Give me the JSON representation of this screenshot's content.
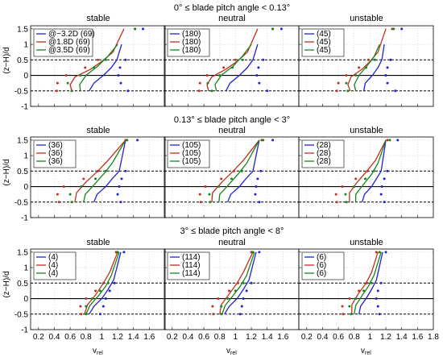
{
  "layout_cols": [
    "stable",
    "neutral",
    "unstable"
  ],
  "colors": {
    "blue": "#1f22d0",
    "red": "#c0301c",
    "green": "#16861e",
    "grid": "#c8c8c8",
    "dash": "#000000"
  },
  "chart_data": {
    "type": "line",
    "title": "",
    "xlabel": "v_rel",
    "ylabel": "(z−H)/d",
    "xlim": [
      0.1,
      1.8
    ],
    "ylim": [
      -1,
      1.6
    ],
    "xticks": [
      "0.2",
      "0.4",
      "0.6",
      "0.8",
      "1",
      "1.2",
      "1.4",
      "1.6",
      "1.8"
    ],
    "yticks": [
      "-1",
      "-0.5",
      "0",
      "0.5",
      "1",
      "1.5"
    ],
    "grid": true,
    "reference_lines": {
      "dashed_y": [
        -0.5,
        0.5
      ],
      "solid_y": [
        0
      ]
    },
    "series_meaning": [
      "@−3.2D",
      "@1.8D",
      "@3.5D"
    ],
    "marker_z": [
      -0.5,
      -0.25,
      0,
      0.25,
      0.5,
      1.5
    ],
    "legend_labels": [
      [
        [
          "@−3.2D (69)",
          "@1.8D (69)",
          "@3.5D (69)"
        ],
        [
          "(180)",
          "(180)",
          "(180)"
        ],
        [
          "(45)",
          "(45)",
          "(45)"
        ]
      ],
      [
        [
          "(36)",
          "(36)",
          "(36)"
        ],
        [
          "(105)",
          "(105)",
          "(105)"
        ],
        [
          "(28)",
          "(28)",
          "(28)"
        ]
      ],
      [
        [
          "(4)",
          "(4)",
          "(4)"
        ],
        [
          "(114)",
          "(114)",
          "(114)"
        ],
        [
          "(6)",
          "(6)",
          "(6)"
        ]
      ]
    ],
    "rows": [
      {
        "title": "0° ≤ blade pitch angle < 0.13°",
        "panels": [
          {
            "column": "stable",
            "lines": {
              "blue": {
                "x": [
                  0.84,
                  0.9,
                  1.02,
                  1.12,
                  1.19,
                  1.25
                ],
                "y": [
                  -0.5,
                  -0.25,
                  0,
                  0.25,
                  0.5,
                  1
                ]
              },
              "red": {
                "x": [
                  0.62,
                  0.6,
                  0.66,
                  0.86,
                  1.0,
                  1.14,
                  1.28
                ],
                "y": [
                  -0.5,
                  -0.3,
                  -0.05,
                  0.2,
                  0.45,
                  0.75,
                  1.5
                ]
              },
              "green": {
                "x": [
                  0.73,
                  0.72,
                  0.8,
                  0.95,
                  1.07,
                  1.2
                ],
                "y": [
                  -0.5,
                  -0.3,
                  0,
                  0.3,
                  0.6,
                  1
                ]
              }
            },
            "markers": {
              "blue": [
                1.33,
                1.24,
                1.21,
                1.23,
                1.3,
                1.52
              ],
              "red": [
                0.43,
                0.44,
                0.55,
                0.79,
                0.95,
                1.42
              ],
              "green": [
                0.62,
                0.57,
                0.73,
                0.9,
                1.05,
                1.42
              ]
            }
          },
          {
            "column": "neutral",
            "lines": {
              "blue": {
                "x": [
                  0.88,
                  0.93,
                  1.05,
                  1.15,
                  1.22,
                  1.28
                ],
                "y": [
                  -0.5,
                  -0.25,
                  0,
                  0.25,
                  0.5,
                  1
                ]
              },
              "red": {
                "x": [
                  0.66,
                  0.64,
                  0.7,
                  0.88,
                  1.02,
                  1.15,
                  1.28
                ],
                "y": [
                  -0.5,
                  -0.3,
                  -0.05,
                  0.2,
                  0.45,
                  0.75,
                  1.5
                ]
              },
              "green": {
                "x": [
                  0.76,
                  0.74,
                  0.82,
                  0.97,
                  1.08,
                  1.2
                ],
                "y": [
                  -0.5,
                  -0.3,
                  0,
                  0.3,
                  0.6,
                  1
                ]
              }
            },
            "markers": {
              "blue": [
                1.4,
                1.3,
                1.27,
                1.29,
                1.35,
                1.58
              ],
              "red": [
                0.54,
                0.55,
                0.64,
                0.85,
                1.0,
                1.47
              ],
              "green": [
                0.7,
                0.65,
                0.8,
                0.96,
                1.09,
                1.47
              ]
            }
          },
          {
            "column": "unstable",
            "lines": {
              "blue": {
                "x": [
                  0.92,
                  0.94,
                  1.03,
                  1.1,
                  1.15,
                  1.18
                ],
                "y": [
                  -0.5,
                  -0.25,
                  0,
                  0.25,
                  0.5,
                  1
                ]
              },
              "red": {
                "x": [
                  0.75,
                  0.72,
                  0.76,
                  0.9,
                  1.0,
                  1.1,
                  1.2
                ],
                "y": [
                  -0.5,
                  -0.3,
                  -0.05,
                  0.2,
                  0.45,
                  0.75,
                  1.5
                ]
              },
              "green": {
                "x": [
                  0.82,
                  0.8,
                  0.86,
                  0.96,
                  1.05,
                  1.12
                ],
                "y": [
                  -0.5,
                  -0.3,
                  0,
                  0.3,
                  0.6,
                  1
                ]
              }
            },
            "markers": {
              "blue": [
                1.32,
                1.22,
                1.2,
                1.22,
                1.26,
                1.4
              ],
              "red": [
                0.58,
                0.6,
                0.7,
                0.86,
                0.98,
                1.28
              ],
              "green": [
                0.72,
                0.7,
                0.82,
                0.95,
                1.06,
                1.3
              ]
            }
          }
        ]
      },
      {
        "title": "0.13° ≤ blade pitch angle < 3°",
        "panels": [
          {
            "column": "stable",
            "lines": {
              "blue": {
                "x": [
                  0.9,
                  0.94,
                  1.05,
                  1.13,
                  1.22,
                  1.3
                ],
                "y": [
                  -0.5,
                  -0.25,
                  0,
                  0.25,
                  0.5,
                  1.5
                ]
              },
              "red": {
                "x": [
                  0.66,
                  0.68,
                  0.8,
                  0.95,
                  1.08,
                  1.3
                ],
                "y": [
                  -0.5,
                  -0.2,
                  0.15,
                  0.5,
                  0.85,
                  1.5
                ]
              },
              "green": {
                "x": [
                  0.77,
                  0.79,
                  0.9,
                  1.02,
                  1.13,
                  1.3
                ],
                "y": [
                  -0.5,
                  -0.25,
                  0.05,
                  0.4,
                  0.75,
                  1.5
                ]
              }
            },
            "markers": {
              "blue": [
                1.24,
                1.2,
                1.22,
                1.25,
                1.3,
                1.45
              ],
              "red": [
                0.46,
                0.44,
                0.52,
                0.77,
                0.95,
                1.3
              ],
              "green": [
                0.62,
                0.6,
                0.74,
                0.92,
                1.05,
                1.32
              ]
            }
          },
          {
            "column": "neutral",
            "lines": {
              "blue": {
                "x": [
                  0.9,
                  0.94,
                  1.05,
                  1.13,
                  1.22,
                  1.3
                ],
                "y": [
                  -0.5,
                  -0.25,
                  0,
                  0.25,
                  0.5,
                  1.5
                ]
              },
              "red": {
                "x": [
                  0.7,
                  0.71,
                  0.83,
                  0.97,
                  1.1,
                  1.3
                ],
                "y": [
                  -0.5,
                  -0.2,
                  0.15,
                  0.5,
                  0.85,
                  1.5
                ]
              },
              "green": {
                "x": [
                  0.79,
                  0.8,
                  0.91,
                  1.03,
                  1.14,
                  1.3
                ],
                "y": [
                  -0.5,
                  -0.25,
                  0.05,
                  0.4,
                  0.75,
                  1.5
                ]
              }
            },
            "markers": {
              "blue": [
                1.3,
                1.25,
                1.26,
                1.28,
                1.32,
                1.47
              ],
              "red": [
                0.56,
                0.55,
                0.62,
                0.82,
                0.98,
                1.33
              ],
              "green": [
                0.68,
                0.67,
                0.79,
                0.95,
                1.08,
                1.35
              ]
            }
          },
          {
            "column": "unstable",
            "lines": {
              "blue": {
                "x": [
                  0.9,
                  0.93,
                  1.02,
                  1.08,
                  1.14,
                  1.2
                ],
                "y": [
                  -0.5,
                  -0.25,
                  0,
                  0.25,
                  0.5,
                  1.5
                ]
              },
              "red": {
                "x": [
                  0.74,
                  0.74,
                  0.84,
                  0.96,
                  1.07,
                  1.2
                ],
                "y": [
                  -0.5,
                  -0.2,
                  0.15,
                  0.5,
                  0.85,
                  1.5
                ]
              },
              "green": {
                "x": [
                  0.82,
                  0.82,
                  0.91,
                  1.02,
                  1.1,
                  1.2
                ],
                "y": [
                  -0.5,
                  -0.25,
                  0.05,
                  0.4,
                  0.75,
                  1.5
                ]
              }
            },
            "markers": {
              "blue": [
                1.18,
                1.14,
                1.15,
                1.18,
                1.22,
                1.35
              ],
              "red": [
                0.58,
                0.57,
                0.65,
                0.82,
                0.97,
                1.22
              ],
              "green": [
                0.7,
                0.69,
                0.8,
                0.94,
                1.05,
                1.25
              ]
            }
          }
        ]
      },
      {
        "title": "3° ≤ blade pitch angle < 8°",
        "panels": [
          {
            "column": "stable",
            "lines": {
              "blue": {
                "x": [
                  0.84,
                  0.9,
                  1.0,
                  1.08,
                  1.15,
                  1.24
                ],
                "y": [
                  -0.5,
                  -0.25,
                  0,
                  0.3,
                  0.6,
                  1.5
                ]
              },
              "red": {
                "x": [
                  0.78,
                  0.82,
                  0.93,
                  1.02,
                  1.1,
                  1.2
                ],
                "y": [
                  -0.5,
                  -0.2,
                  0.15,
                  0.5,
                  0.85,
                  1.5
                ]
              },
              "green": {
                "x": [
                  0.8,
                  0.85,
                  0.96,
                  1.05,
                  1.12,
                  1.22
                ],
                "y": [
                  -0.5,
                  -0.22,
                  0.1,
                  0.4,
                  0.75,
                  1.5
                ]
              }
            },
            "markers": {
              "blue": [
                0.98,
                1.02,
                1.05,
                1.1,
                1.16,
                1.28
              ],
              "red": [
                0.74,
                0.73,
                0.8,
                0.92,
                1.02,
                1.18
              ],
              "green": [
                0.8,
                0.8,
                0.88,
                0.98,
                1.08,
                1.2
              ]
            }
          },
          {
            "column": "neutral",
            "lines": {
              "blue": {
                "x": [
                  0.86,
                  0.92,
                  1.02,
                  1.1,
                  1.17,
                  1.26
                ],
                "y": [
                  -0.5,
                  -0.25,
                  0,
                  0.3,
                  0.6,
                  1.5
                ]
              },
              "red": {
                "x": [
                  0.8,
                  0.82,
                  0.92,
                  1.02,
                  1.1,
                  1.22
                ],
                "y": [
                  -0.5,
                  -0.2,
                  0.15,
                  0.5,
                  0.85,
                  1.5
                ]
              },
              "green": {
                "x": [
                  0.83,
                  0.87,
                  0.97,
                  1.06,
                  1.14,
                  1.24
                ],
                "y": [
                  -0.5,
                  -0.22,
                  0.1,
                  0.4,
                  0.75,
                  1.5
                ]
              }
            },
            "markers": {
              "blue": [
                1.06,
                1.08,
                1.1,
                1.14,
                1.2,
                1.3
              ],
              "red": [
                0.72,
                0.71,
                0.78,
                0.92,
                1.03,
                1.2
              ],
              "green": [
                0.82,
                0.82,
                0.9,
                1.0,
                1.1,
                1.22
              ]
            }
          },
          {
            "column": "unstable",
            "lines": {
              "blue": {
                "x": [
                  0.86,
                  0.88,
                  0.95,
                  1.02,
                  1.08,
                  1.16
                ],
                "y": [
                  -0.5,
                  -0.25,
                  0,
                  0.3,
                  0.6,
                  1.5
                ]
              },
              "red": {
                "x": [
                  0.77,
                  0.77,
                  0.85,
                  0.95,
                  1.02,
                  1.1
                ],
                "y": [
                  -0.5,
                  -0.2,
                  0.15,
                  0.5,
                  0.85,
                  1.5
                ]
              },
              "green": {
                "x": [
                  0.8,
                  0.82,
                  0.9,
                  0.98,
                  1.05,
                  1.14
                ],
                "y": [
                  -0.5,
                  -0.22,
                  0.1,
                  0.4,
                  0.75,
                  1.5
                ]
              }
            },
            "markers": {
              "blue": [
                1.12,
                1.1,
                1.08,
                1.1,
                1.14,
                1.2
              ],
              "red": [
                0.66,
                0.65,
                0.74,
                0.86,
                0.96,
                1.08
              ],
              "green": [
                0.76,
                0.74,
                0.82,
                0.92,
                1.02,
                1.12
              ]
            }
          }
        ]
      }
    ]
  }
}
